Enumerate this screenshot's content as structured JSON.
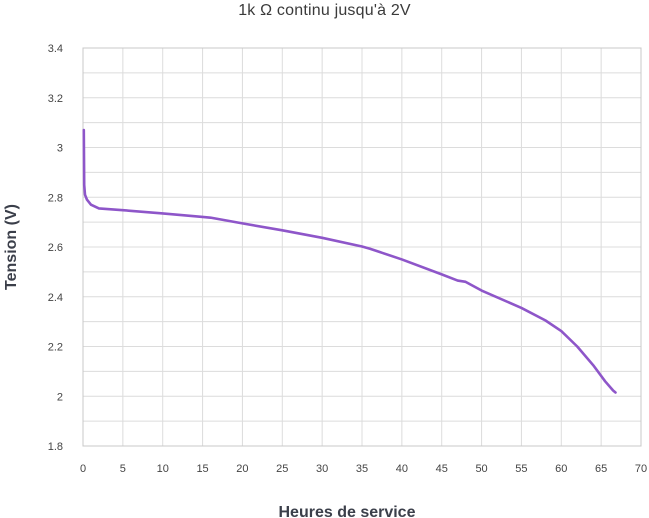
{
  "chart_data": {
    "type": "line",
    "title": "1k Ω continu jusqu'à 2V",
    "xlabel": "Heures de service",
    "ylabel": "Tension (V)",
    "xlim": [
      0,
      70
    ],
    "ylim": [
      1.8,
      3.4
    ],
    "x_ticks": [
      0,
      5,
      10,
      15,
      20,
      25,
      30,
      35,
      40,
      45,
      50,
      55,
      60,
      65,
      70
    ],
    "x_tick_labels": [
      "0",
      "5",
      "10",
      "15",
      "20",
      "25",
      "30",
      "35",
      "40",
      "45",
      "50",
      "55",
      "60",
      "65",
      "70"
    ],
    "y_ticks": [
      1.8,
      2,
      2.2,
      2.4,
      2.6,
      2.8,
      3,
      3.2,
      3.4
    ],
    "y_tick_labels": [
      "1.8",
      "2",
      "2.2",
      "2.4",
      "2.6",
      "2.8",
      "3",
      "3.2",
      "3.4"
    ],
    "grid": true,
    "legend": "none",
    "series": [
      {
        "color": "#8e56c9",
        "x": [
          0.1,
          0.15,
          0.25,
          0.5,
          1.0,
          2.0,
          5,
          10,
          15,
          16,
          20,
          25,
          30,
          35,
          36,
          40,
          45,
          47,
          48,
          50,
          55,
          58,
          60,
          62,
          64,
          65.5,
          66.5,
          66.8
        ],
        "y": [
          3.07,
          2.85,
          2.81,
          2.79,
          2.77,
          2.755,
          2.748,
          2.735,
          2.721,
          2.718,
          2.695,
          2.667,
          2.637,
          2.602,
          2.593,
          2.55,
          2.49,
          2.465,
          2.46,
          2.425,
          2.355,
          2.305,
          2.262,
          2.2,
          2.125,
          2.06,
          2.023,
          2.015
        ]
      }
    ]
  }
}
